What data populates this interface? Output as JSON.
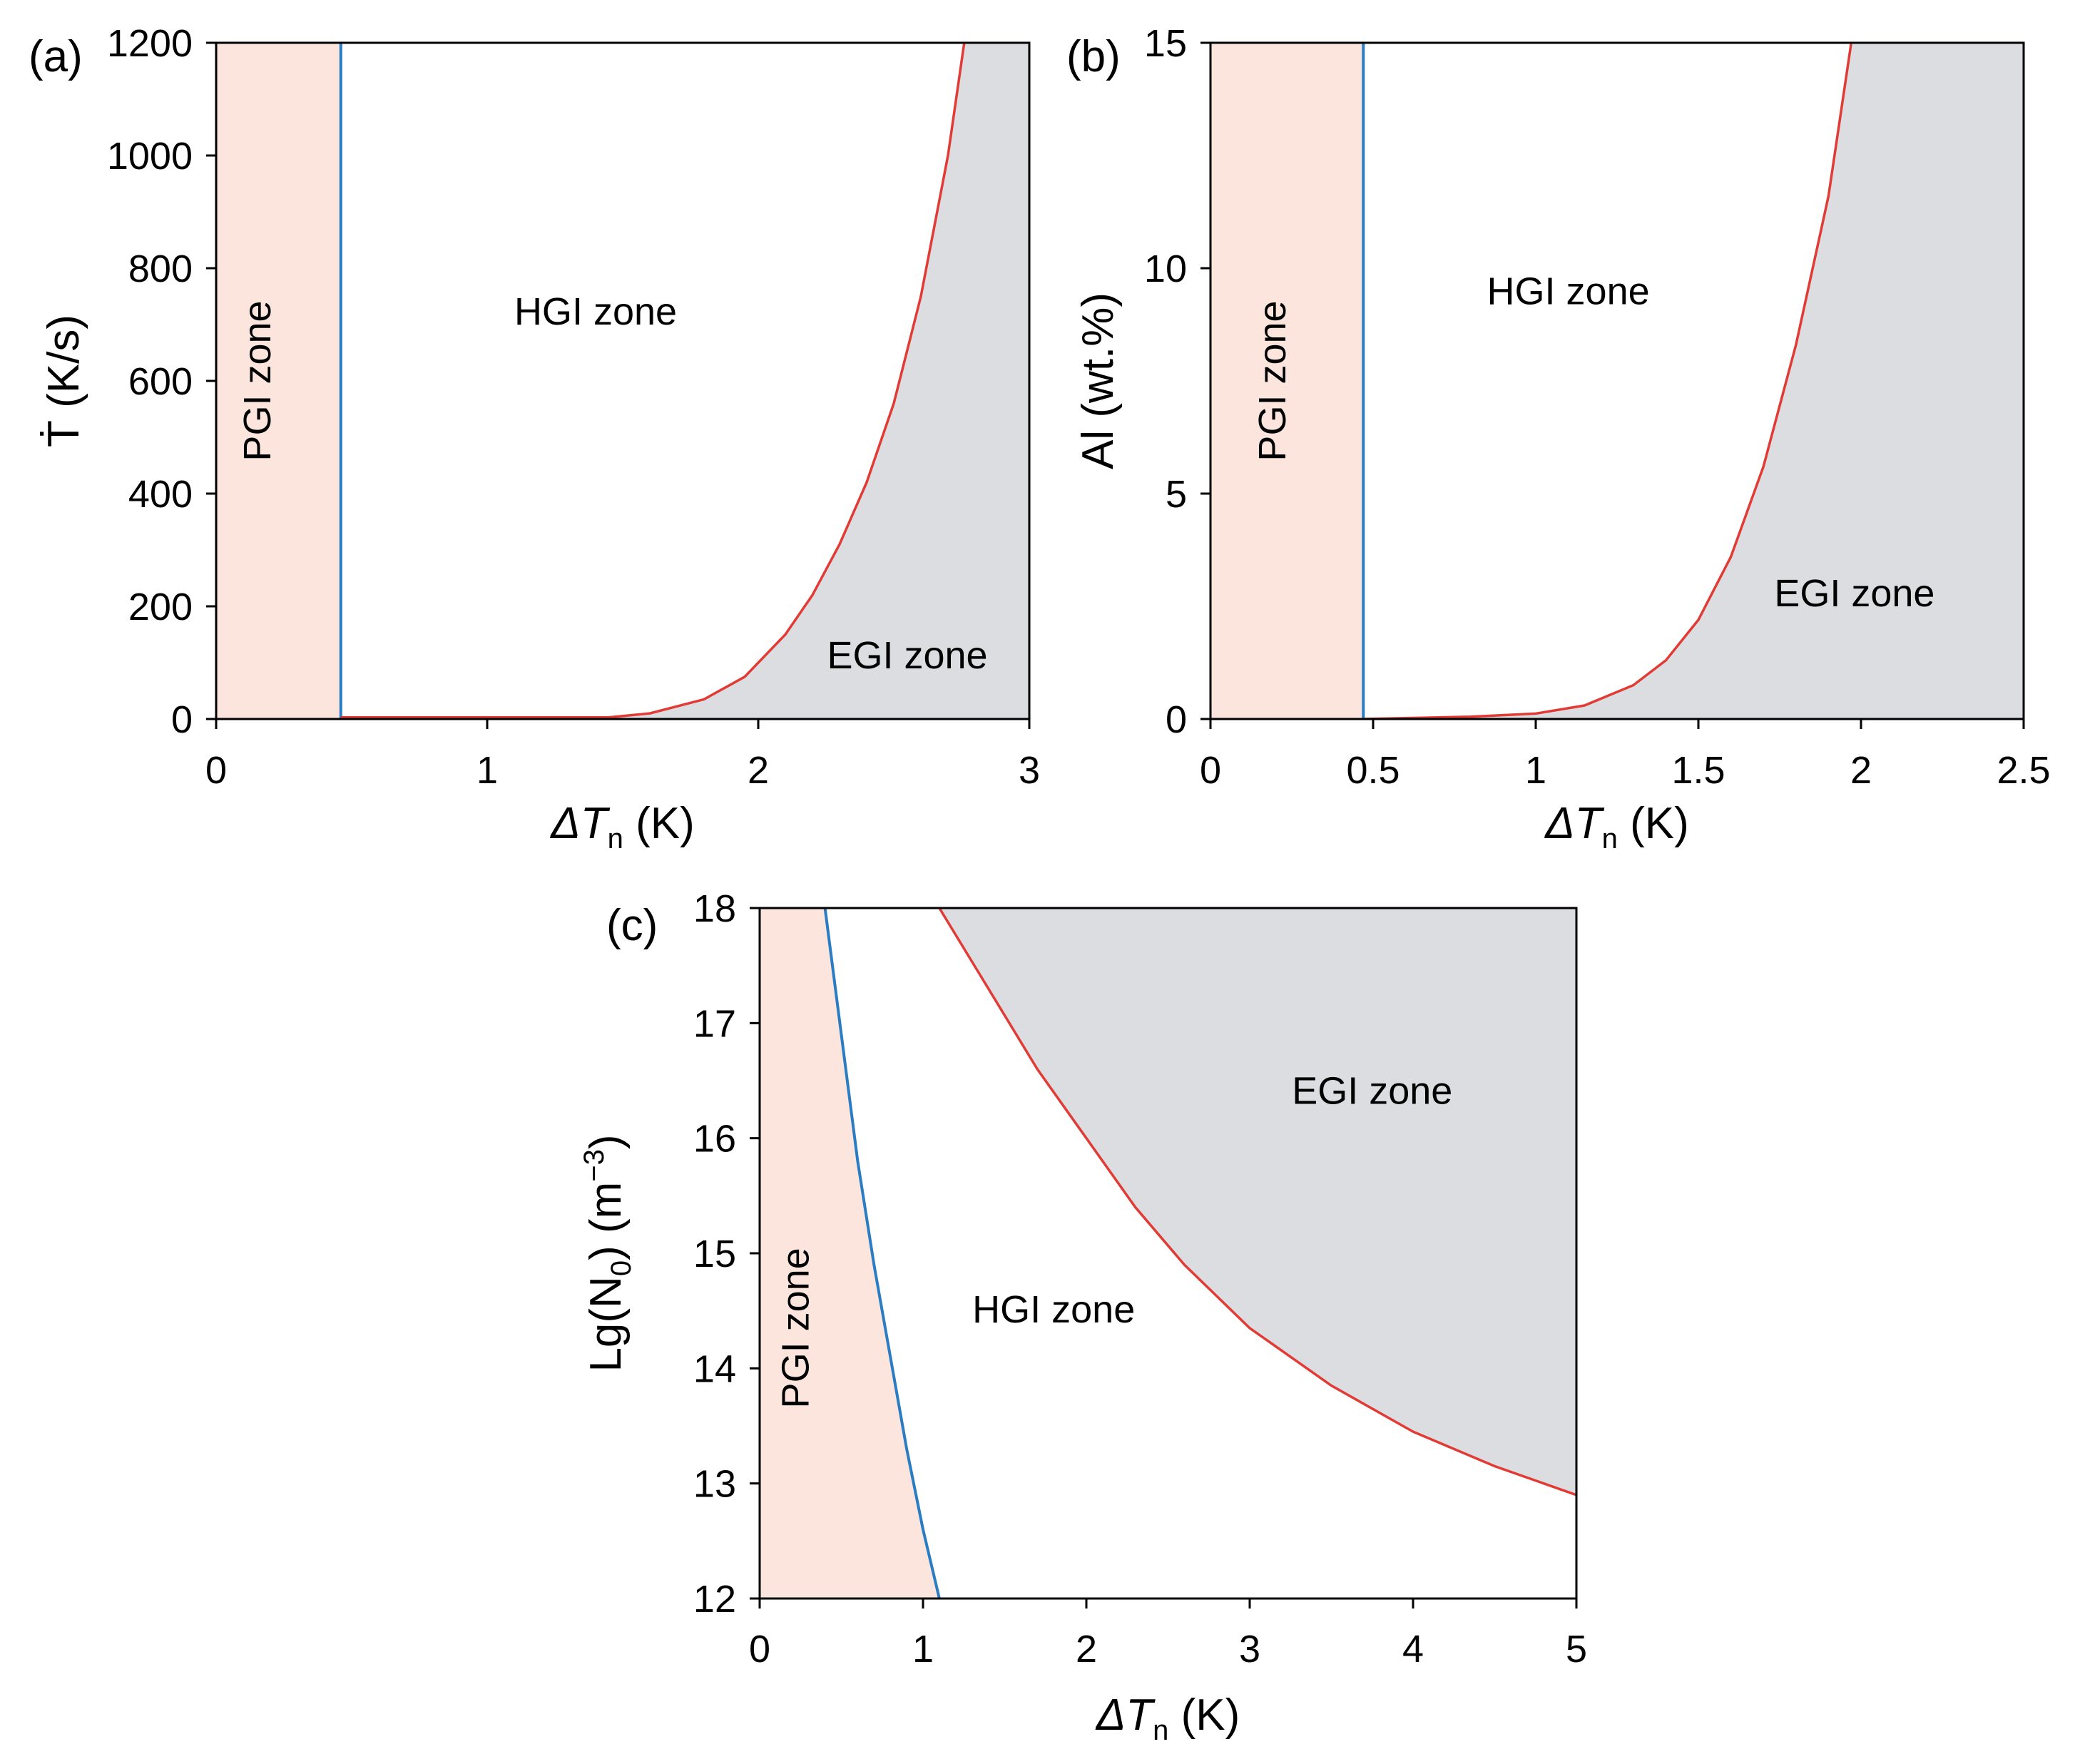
{
  "colors": {
    "pgi_fill": "#fbe5dc",
    "egi_fill": "#dcdde0",
    "blue_line": "#2a7dc2",
    "red_line": "#e23a34",
    "frame": "#000000"
  },
  "chart_data": [
    {
      "panel": "(a)",
      "type": "area",
      "xlabel": "ΔT",
      "xlabel_sub": "n",
      "xlabel_unit": "(K)",
      "ylabel": "Ṫ (K/s)",
      "xlim": [
        0,
        3
      ],
      "ylim": [
        0,
        1200
      ],
      "xticks": [
        0,
        1,
        2,
        3
      ],
      "xtick_labels": [
        "0",
        "1",
        "2",
        "3"
      ],
      "yticks": [
        0,
        200,
        400,
        600,
        800,
        1000,
        1200
      ],
      "ytick_labels": [
        "0",
        "200",
        "400",
        "600",
        "800",
        "1000",
        "1200"
      ],
      "zones": [
        {
          "label": "PGI zone",
          "x": 0.2,
          "y": 600,
          "rotate": true
        },
        {
          "label": "HGI zone",
          "x": 1.4,
          "y": 700,
          "rotate": false
        },
        {
          "label": "EGI zone",
          "x": 2.55,
          "y": 90,
          "rotate": false
        }
      ],
      "blue_boundary": [
        [
          0.46,
          0
        ],
        [
          0.46,
          1200
        ]
      ],
      "red_boundary": [
        [
          0.46,
          3
        ],
        [
          1.45,
          3
        ],
        [
          1.6,
          10
        ],
        [
          1.8,
          35
        ],
        [
          1.95,
          75
        ],
        [
          2.1,
          150
        ],
        [
          2.2,
          220
        ],
        [
          2.3,
          310
        ],
        [
          2.4,
          420
        ],
        [
          2.5,
          560
        ],
        [
          2.6,
          750
        ],
        [
          2.7,
          1000
        ],
        [
          2.76,
          1200
        ]
      ]
    },
    {
      "panel": "(b)",
      "type": "area",
      "xlabel": "ΔT",
      "xlabel_sub": "n",
      "xlabel_unit": "(K)",
      "ylabel": "Al (wt.%)",
      "xlim": [
        0,
        2.5
      ],
      "ylim": [
        0,
        15
      ],
      "xticks": [
        0,
        0.5,
        1,
        1.5,
        2,
        2.5
      ],
      "xtick_labels": [
        "0",
        "0.5",
        "1",
        "1.5",
        "2",
        "2.5"
      ],
      "yticks": [
        0,
        5,
        10,
        15
      ],
      "ytick_labels": [
        "0",
        "5",
        "10",
        "15"
      ],
      "zones": [
        {
          "label": "PGI zone",
          "x": 0.23,
          "y": 7.5,
          "rotate": true
        },
        {
          "label": "HGI zone",
          "x": 1.1,
          "y": 9.2,
          "rotate": false
        },
        {
          "label": "EGI zone",
          "x": 1.98,
          "y": 2.5,
          "rotate": false
        }
      ],
      "blue_boundary": [
        [
          0.47,
          0
        ],
        [
          0.47,
          15
        ]
      ],
      "red_boundary": [
        [
          0.47,
          0
        ],
        [
          0.8,
          0.05
        ],
        [
          1.0,
          0.12
        ],
        [
          1.15,
          0.3
        ],
        [
          1.3,
          0.75
        ],
        [
          1.4,
          1.3
        ],
        [
          1.5,
          2.2
        ],
        [
          1.6,
          3.6
        ],
        [
          1.7,
          5.6
        ],
        [
          1.8,
          8.3
        ],
        [
          1.9,
          11.6
        ],
        [
          1.97,
          15
        ]
      ]
    },
    {
      "panel": "(c)",
      "type": "area",
      "xlabel": "ΔT",
      "xlabel_sub": "n",
      "xlabel_unit": "(K)",
      "ylabel": "Lg(N",
      "ylabel_sub": "0",
      "ylabel_unit": ")  (m",
      "ylabel_sup": "−3",
      "ylabel_end": ")",
      "xlim": [
        0,
        5
      ],
      "ylim": [
        12,
        18
      ],
      "xticks": [
        0,
        1,
        2,
        3,
        4,
        5
      ],
      "xtick_labels": [
        "0",
        "1",
        "2",
        "3",
        "4",
        "5"
      ],
      "yticks": [
        12,
        13,
        14,
        15,
        16,
        17,
        18
      ],
      "ytick_labels": [
        "12",
        "13",
        "14",
        "15",
        "16",
        "17",
        "18"
      ],
      "zones": [
        {
          "label": "PGI zone",
          "x": 0.3,
          "y": 14.35,
          "rotate": true
        },
        {
          "label": "HGI zone",
          "x": 1.8,
          "y": 14.4,
          "rotate": false
        },
        {
          "label": "EGI zone",
          "x": 3.75,
          "y": 16.3,
          "rotate": false
        }
      ],
      "blue_boundary": [
        [
          0.4,
          18
        ],
        [
          0.5,
          16.9
        ],
        [
          0.6,
          15.8
        ],
        [
          0.7,
          14.9
        ],
        [
          0.8,
          14.1
        ],
        [
          0.9,
          13.3
        ],
        [
          1.0,
          12.6
        ],
        [
          1.1,
          12.0
        ]
      ],
      "red_boundary": [
        [
          1.1,
          18
        ],
        [
          1.4,
          17.3
        ],
        [
          1.7,
          16.6
        ],
        [
          2.0,
          16.0
        ],
        [
          2.3,
          15.4
        ],
        [
          2.6,
          14.9
        ],
        [
          3.0,
          14.35
        ],
        [
          3.5,
          13.85
        ],
        [
          4.0,
          13.45
        ],
        [
          4.5,
          13.15
        ],
        [
          5.0,
          12.9
        ]
      ]
    }
  ]
}
